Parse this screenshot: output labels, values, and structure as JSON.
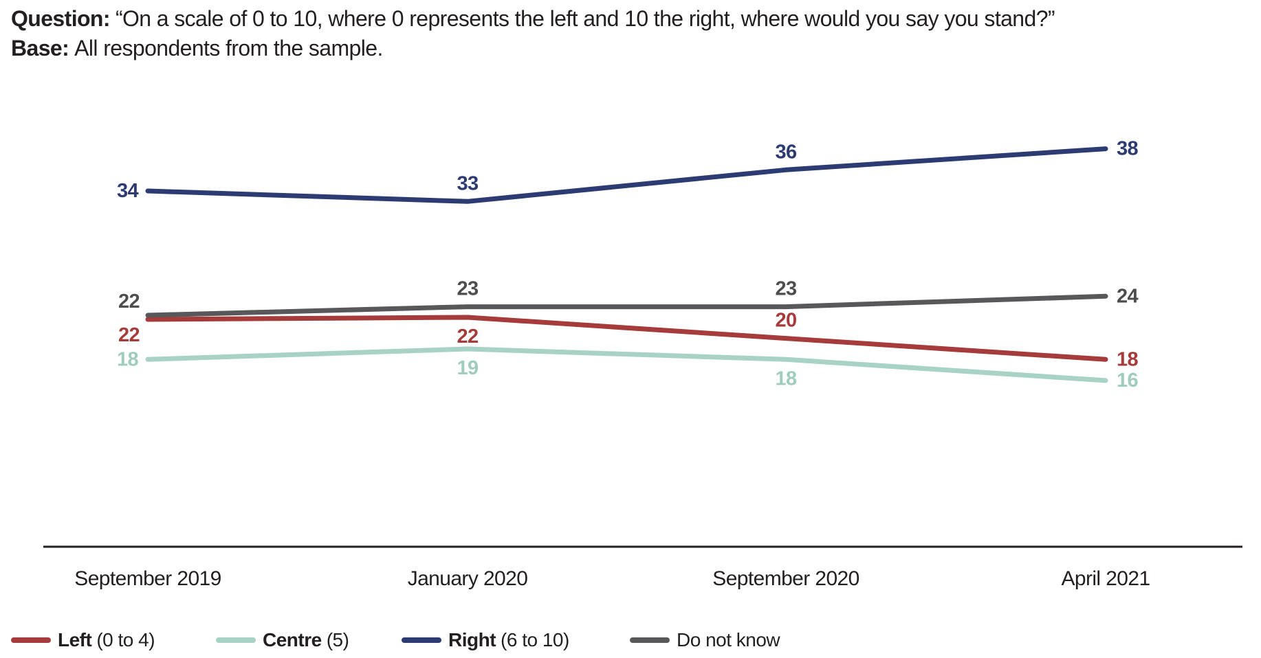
{
  "header": {
    "question_label": "Question:",
    "question_text": "“On a scale of 0 to 10, where 0 represents the left and 10 the right, where would you say you stand?”",
    "base_label": "Base:",
    "base_text": "All respondents from the sample."
  },
  "chart_data": {
    "type": "line",
    "title": "",
    "xlabel": "",
    "ylabel": "",
    "grid": false,
    "legend_position": "bottom",
    "categories": [
      "September 2019",
      "January 2020",
      "September 2020",
      "April 2021"
    ],
    "series": [
      {
        "name": "Right (6 to 10)",
        "values": [
          34,
          33,
          36,
          38
        ],
        "color": "#2d3b73",
        "label_color": "#2d3b73",
        "label_placement": [
          "left",
          "above",
          "above",
          "right"
        ],
        "y_nudge": [
          0,
          0,
          0,
          0
        ]
      },
      {
        "name": "Do not know",
        "values": [
          22,
          23,
          23,
          24
        ],
        "color": "#58585a",
        "label_color": "#4d4d4f",
        "label_placement": [
          "left-above",
          "above",
          "above",
          "right"
        ],
        "y_nudge": [
          -3,
          0,
          0,
          0
        ]
      },
      {
        "name": "Left (0 to 4)",
        "values": [
          22,
          22,
          20,
          18
        ],
        "color": "#a53b3a",
        "label_color": "#a53b3a",
        "label_placement": [
          "left-below",
          "below",
          "above",
          "right"
        ],
        "y_nudge": [
          3,
          0,
          0,
          0
        ]
      },
      {
        "name": "Centre (5)",
        "values": [
          18,
          19,
          18,
          16
        ],
        "color": "#a8d2c5",
        "label_color": "#9fccbe",
        "label_placement": [
          "left",
          "below",
          "below",
          "right"
        ],
        "y_nudge": [
          0,
          0,
          0,
          0
        ]
      }
    ]
  },
  "legend": [
    {
      "bold": "Left",
      "rest": "(0 to 4)",
      "color": "#a53b3a"
    },
    {
      "bold": "Centre",
      "rest": "(5)",
      "color": "#a8d2c5"
    },
    {
      "bold": "Right",
      "rest": "(6 to 10)",
      "color": "#2d3b73"
    },
    {
      "bold": "",
      "rest": "Do not know",
      "color": "#58585a"
    }
  ],
  "colors": {
    "axis_line": "#231f20",
    "text": "#231f20"
  }
}
